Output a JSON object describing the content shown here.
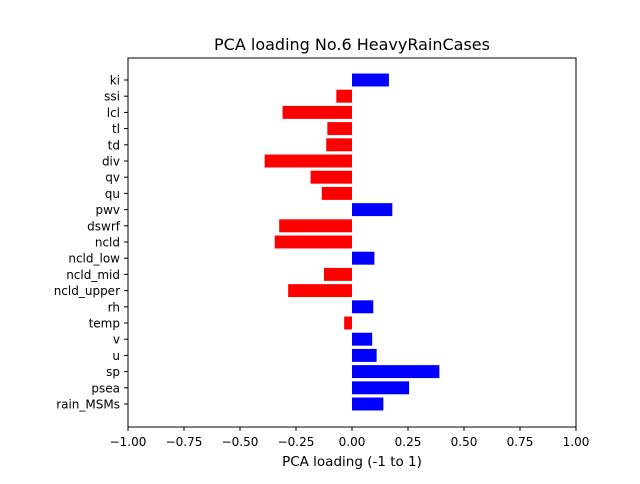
{
  "chart_data": {
    "type": "bar",
    "orientation": "horizontal",
    "title": "PCA loading No.6 HeavyRainCases",
    "xlabel": "PCA loading (-1 to 1)",
    "ylabel": "",
    "xlim": [
      -1.0,
      1.0
    ],
    "xticks": [
      "−1.00",
      "−0.75",
      "−0.50",
      "−0.25",
      "0.00",
      "0.25",
      "0.50",
      "0.75",
      "1.00"
    ],
    "xtick_values": [
      -1.0,
      -0.75,
      -0.5,
      -0.25,
      0.0,
      0.25,
      0.5,
      0.75,
      1.0
    ],
    "grid": false,
    "categories": [
      "ki",
      "ssi",
      "lcl",
      "tl",
      "td",
      "div",
      "qv",
      "qu",
      "pwv",
      "dswrf",
      "ncld",
      "ncld_low",
      "ncld_mid",
      "ncld_upper",
      "rh",
      "temp",
      "v",
      "u",
      "sp",
      "psea",
      "rain_MSMs"
    ],
    "values": [
      0.165,
      -0.07,
      -0.31,
      -0.11,
      -0.115,
      -0.39,
      -0.185,
      -0.135,
      0.18,
      -0.325,
      -0.345,
      0.1,
      -0.125,
      -0.285,
      0.095,
      -0.035,
      0.09,
      0.11,
      0.39,
      0.255,
      0.14
    ],
    "colors": {
      "positive": "#0000ff",
      "negative": "#ff0000"
    }
  }
}
